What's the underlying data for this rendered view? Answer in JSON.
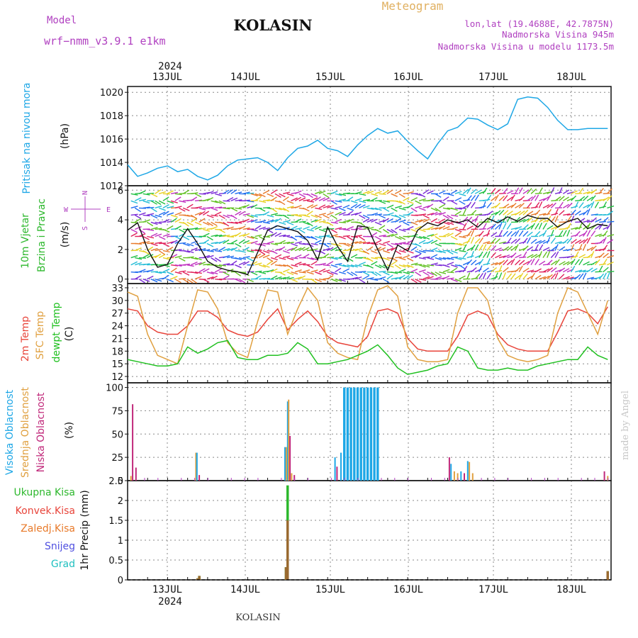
{
  "header": {
    "model_label": "Model",
    "model_name": "wrf−nmm_v3.9.1  e1km",
    "title": "KOLASIN",
    "meteogram": "Meteogram",
    "lonlat": "lon,lat (19.4688E, 42.7875N)",
    "altitude": "Nadmorska Visina 945m",
    "model_altitude": "Nadmorska Visina u modelu 1173.5m",
    "footer": "KOLASIN",
    "watermark": "made by Angel"
  },
  "days": [
    "13JUL",
    "14JUL",
    "15JUL",
    "16JUL",
    "17JUL",
    "18JUL"
  ],
  "year": "2024",
  "colors": {
    "pressure": "#1ea7e6",
    "wind_label": "#2db82d",
    "compass": "#b040c0",
    "temp2m": "#e8443a",
    "sfc": "#e0a040",
    "dew": "#20c020",
    "high_cloud": "#1ea7e6",
    "mid_cloud": "#e0a040",
    "low_cloud": "#c0287a",
    "total_precip": "#2db82d",
    "conv_precip": "#e8443a",
    "frozen_precip": "#e87a2a",
    "snow": "#5050e0",
    "hail": "#20c0c0",
    "title_purple": "#b040c0",
    "meteogram_orange": "#e0b060"
  },
  "panel_labels": {
    "pressure_a": "Pritisak na nivou mora",
    "pressure_unit": "(hPa)",
    "wind_a": "10m Vjetar",
    "wind_b": "Brzina i Pravac",
    "wind_unit": "(m/s)",
    "compass_w": "W",
    "compass_e": "E",
    "compass_n": "N",
    "compass_s": "S",
    "temp_a": "2m Temp",
    "temp_b": "SFC Temp",
    "temp_c": "dewpt Temp",
    "temp_unit": "(C)",
    "cloud_a": "Visoka Oblacnost",
    "cloud_b": "Srednja Oblacnost",
    "cloud_c": "Niska Oblacnost",
    "cloud_unit": "(%)",
    "precip_axis": "1hr Precip (mm)",
    "precip_legend": [
      "Ukupna Kisa",
      "Konvek.Kisa",
      "Zaledj.Kisa",
      "Snijeg",
      "Grad"
    ]
  },
  "chart_data": [
    {
      "type": "line",
      "name": "pressure",
      "x_unit": "hours from 12 JUL 12:00",
      "ylim": [
        1012,
        1020.5
      ],
      "yticks": [
        1012,
        1014,
        1016,
        1018,
        1020
      ],
      "grid": true,
      "series": [
        {
          "x": [
            0,
            3,
            6,
            9,
            12,
            15,
            18,
            21,
            24,
            27,
            30,
            33,
            36,
            39,
            42,
            45,
            48,
            51,
            54,
            57,
            60,
            63,
            66,
            69,
            72,
            75,
            78,
            81,
            84,
            87,
            90,
            93,
            96,
            99,
            102,
            105,
            108,
            111,
            114,
            117,
            120,
            123,
            126,
            129,
            132,
            135,
            138,
            141,
            144
          ],
          "values": [
            1013.8,
            1012.8,
            1013.1,
            1013.5,
            1013.7,
            1013.2,
            1013.4,
            1012.8,
            1012.5,
            1012.9,
            1013.7,
            1014.2,
            1014.3,
            1014.4,
            1014.0,
            1013.3,
            1014.4,
            1015.2,
            1015.4,
            1015.9,
            1015.2,
            1015.0,
            1014.5,
            1015.5,
            1016.3,
            1016.9,
            1016.5,
            1016.7,
            1015.8,
            1015.0,
            1014.3,
            1015.6,
            1016.7,
            1017.0,
            1017.8,
            1017.7,
            1017.2,
            1016.8,
            1017.3,
            1019.4,
            1019.6,
            1019.5,
            1018.7,
            1017.6,
            1016.8,
            1016.8,
            1016.9,
            1016.9,
            1016.9
          ]
        }
      ]
    },
    {
      "type": "line",
      "name": "wind_speed",
      "ylim": [
        -0.3,
        6.3
      ],
      "yticks": [
        0,
        2,
        4,
        6
      ],
      "grid": true,
      "series": [
        {
          "x": [
            0,
            3,
            6,
            9,
            12,
            15,
            18,
            21,
            24,
            27,
            30,
            33,
            36,
            39,
            42,
            45,
            48,
            51,
            54,
            57,
            60,
            63,
            66,
            69,
            72,
            75,
            78,
            81,
            84,
            87,
            90,
            93,
            96,
            99,
            102,
            105,
            108,
            111,
            114,
            117,
            120,
            123,
            126,
            129,
            132,
            135,
            138,
            141,
            144
          ],
          "values": [
            3.3,
            3.8,
            2.0,
            0.8,
            1.0,
            2.4,
            3.4,
            2.4,
            1.2,
            0.8,
            0.6,
            0.5,
            0.3,
            1.8,
            3.3,
            3.6,
            3.4,
            3.2,
            2.6,
            1.3,
            3.5,
            2.2,
            1.2,
            3.6,
            3.5,
            2.0,
            0.6,
            2.3,
            1.9,
            3.3,
            3.8,
            3.6,
            4.0,
            3.8,
            4.0,
            3.5,
            4.1,
            3.8,
            4.2,
            3.9,
            4.3,
            4.1,
            4.1,
            3.5,
            3.9,
            4.1,
            3.4,
            3.7,
            3.6
          ]
        }
      ]
    },
    {
      "type": "line",
      "name": "temperature",
      "ylim": [
        10.5,
        34
      ],
      "yticks": [
        12,
        15,
        18,
        21,
        24,
        27,
        30,
        33
      ],
      "grid": true,
      "series": [
        {
          "name": "2m Temp",
          "x": [
            0,
            3,
            6,
            9,
            12,
            15,
            18,
            21,
            24,
            27,
            30,
            33,
            36,
            39,
            42,
            45,
            48,
            51,
            54,
            57,
            60,
            63,
            66,
            69,
            72,
            75,
            78,
            81,
            84,
            87,
            90,
            93,
            96,
            99,
            102,
            105,
            108,
            111,
            114,
            117,
            120,
            123,
            126,
            129,
            132,
            135,
            138,
            141,
            144
          ],
          "values": [
            28,
            27.5,
            24,
            22.5,
            22,
            22,
            24,
            27.5,
            27.5,
            26,
            23,
            22,
            21.5,
            22.5,
            25.5,
            28,
            23,
            25.5,
            27.5,
            25,
            21.5,
            20,
            19.5,
            19,
            21.5,
            27.5,
            28,
            27,
            21,
            18.5,
            18,
            18,
            18,
            21.5,
            26.5,
            27.5,
            26.5,
            22,
            19.5,
            18.5,
            18,
            18,
            18,
            22.5,
            27.5,
            28,
            27,
            24.5,
            28.5
          ]
        },
        {
          "name": "SFC Temp",
          "x": [
            0,
            3,
            6,
            9,
            12,
            15,
            18,
            21,
            24,
            27,
            30,
            33,
            36,
            39,
            42,
            45,
            48,
            51,
            54,
            57,
            60,
            63,
            66,
            69,
            72,
            75,
            78,
            81,
            84,
            87,
            90,
            93,
            96,
            99,
            102,
            105,
            108,
            111,
            114,
            117,
            120,
            123,
            126,
            129,
            132,
            135,
            138,
            141,
            144
          ],
          "values": [
            32,
            31,
            22,
            17,
            16,
            15,
            24,
            32.5,
            32,
            28,
            20,
            17.5,
            16.5,
            25,
            32.5,
            32,
            22,
            28,
            33,
            30,
            20,
            17.5,
            16.5,
            16,
            26,
            32.5,
            33.5,
            31,
            19,
            16,
            15.5,
            15.5,
            16,
            27,
            33,
            33,
            30,
            21,
            17,
            16,
            15.5,
            16,
            17,
            27,
            33,
            32,
            27,
            22,
            30
          ]
        },
        {
          "name": "dewpt Temp",
          "x": [
            0,
            3,
            6,
            9,
            12,
            15,
            18,
            21,
            24,
            27,
            30,
            33,
            36,
            39,
            42,
            45,
            48,
            51,
            54,
            57,
            60,
            63,
            66,
            69,
            72,
            75,
            78,
            81,
            84,
            87,
            90,
            93,
            96,
            99,
            102,
            105,
            108,
            111,
            114,
            117,
            120,
            123,
            126,
            129,
            132,
            135,
            138,
            141,
            144
          ],
          "values": [
            16,
            15.5,
            15,
            14.5,
            14.5,
            15,
            19,
            17.5,
            18.5,
            20,
            20.5,
            16.5,
            16,
            16,
            17,
            17,
            17.5,
            20,
            18.5,
            15,
            15,
            15.5,
            16,
            17,
            18,
            19.5,
            17,
            14,
            12.5,
            13,
            13.5,
            14.5,
            15,
            19,
            18,
            14,
            13.5,
            13.5,
            14,
            13.5,
            13.5,
            14.5,
            15,
            15.5,
            16,
            16,
            19,
            17,
            16
          ]
        }
      ]
    },
    {
      "type": "bar",
      "name": "cloud_cover",
      "ylim": [
        0,
        105
      ],
      "yticks": [
        0,
        25,
        50,
        75,
        100
      ],
      "grid": true,
      "series": [
        {
          "name": "Visoka Oblacnost",
          "x": [
            88.5,
            89.5,
            90.5,
            91.5,
            92.5,
            93.5,
            94.5,
            95.5,
            96.5,
            97.5,
            98.5,
            99.5,
            100.5,
            101.5,
            102.5,
            103.5,
            104.5,
            105.5,
            106.5,
            107.5,
            108.5,
            109.5,
            110.5,
            111.5,
            112.5,
            113.5,
            114.5,
            115.5,
            116.5,
            117.5,
            118.5,
            119.5,
            120.5,
            121.5,
            122.5,
            123.5,
            124.5,
            125.5,
            126.5,
            127.5,
            128.5,
            129.5,
            130.5,
            131.5,
            132.5,
            133.5,
            134.5,
            135.5,
            136.5,
            137.5,
            138.5,
            139.5,
            140.5,
            141.5,
            142.5,
            143.5,
            144.5,
            145.5,
            146.5,
            147.5,
            148.5,
            149.5,
            150.5,
            151.5,
            152.5,
            153.5,
            154.5,
            155.5,
            156.5,
            157.5,
            158.5
          ],
          "values": [
            0,
            0,
            0,
            0,
            0,
            0,
            0,
            0,
            0,
            0,
            0,
            0,
            0,
            0,
            0,
            0,
            0,
            0,
            0,
            0,
            0,
            0,
            0,
            0,
            0,
            0,
            0,
            0,
            0,
            0,
            0,
            0,
            0,
            0,
            0,
            0,
            0,
            0,
            0,
            0,
            0,
            0,
            0,
            0,
            0,
            0,
            0,
            0,
            0,
            0,
            0,
            0,
            0,
            0,
            0,
            0,
            0,
            0,
            0,
            0,
            0,
            0,
            0,
            0,
            0,
            0,
            0,
            0,
            0,
            0,
            0
          ]
        }
      ]
    },
    {
      "type": "bar",
      "name": "precipitation",
      "ylim": [
        0,
        2.5
      ],
      "yticks": [
        0,
        0.5,
        1,
        1.5,
        2,
        2.5
      ],
      "grid": true,
      "series": [
        {
          "name": "Ukupna Kisa",
          "x": [
            21,
            21.5,
            47.5,
            48,
            144
          ],
          "values": [
            0.04,
            0.1,
            0.32,
            2.38,
            0.22
          ]
        },
        {
          "name": "Konvek.Kisa",
          "x": [
            21,
            21.5,
            47.5,
            48,
            144
          ],
          "values": [
            0.04,
            0.1,
            0.32,
            1.5,
            0.22
          ]
        }
      ]
    }
  ]
}
